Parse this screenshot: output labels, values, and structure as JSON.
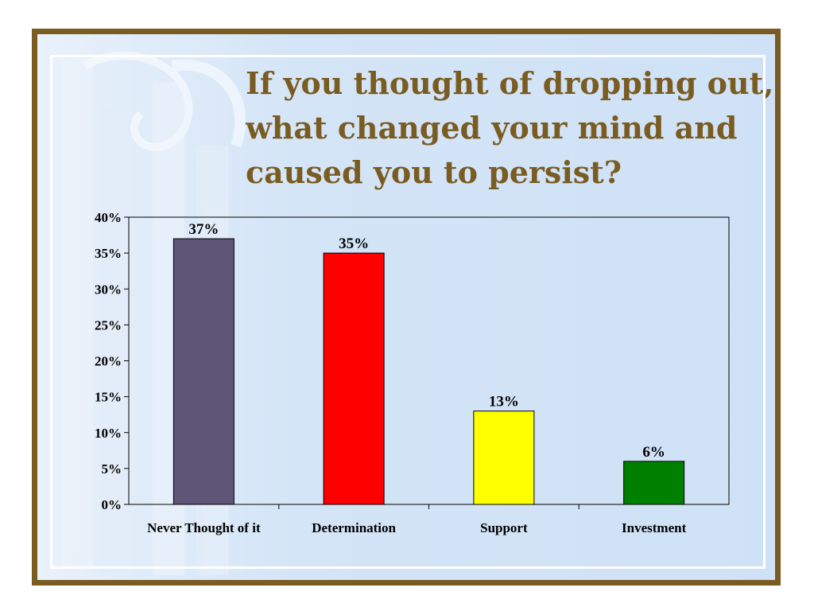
{
  "slide": {
    "title_lines": [
      "If you thought of dropping out,",
      "what changed your mind and",
      "caused you to persist?"
    ]
  },
  "chart_data": {
    "type": "bar",
    "categories": [
      "Never Thought of it",
      "Determination",
      "Support",
      "Investment"
    ],
    "values": [
      37,
      35,
      13,
      6
    ],
    "data_labels": [
      "37%",
      "35%",
      "13%",
      "6%"
    ],
    "colors": [
      "#5e5577",
      "#ff0000",
      "#ffff00",
      "#008000"
    ],
    "yticks": [
      0,
      5,
      10,
      15,
      20,
      25,
      30,
      35,
      40
    ],
    "ytick_labels": [
      "0%",
      "5%",
      "10%",
      "15%",
      "20%",
      "25%",
      "30%",
      "35%",
      "40%"
    ],
    "ylim": [
      0,
      40
    ],
    "unit": "%",
    "grid": false,
    "legend": false,
    "xlabel": "",
    "ylabel": ""
  }
}
